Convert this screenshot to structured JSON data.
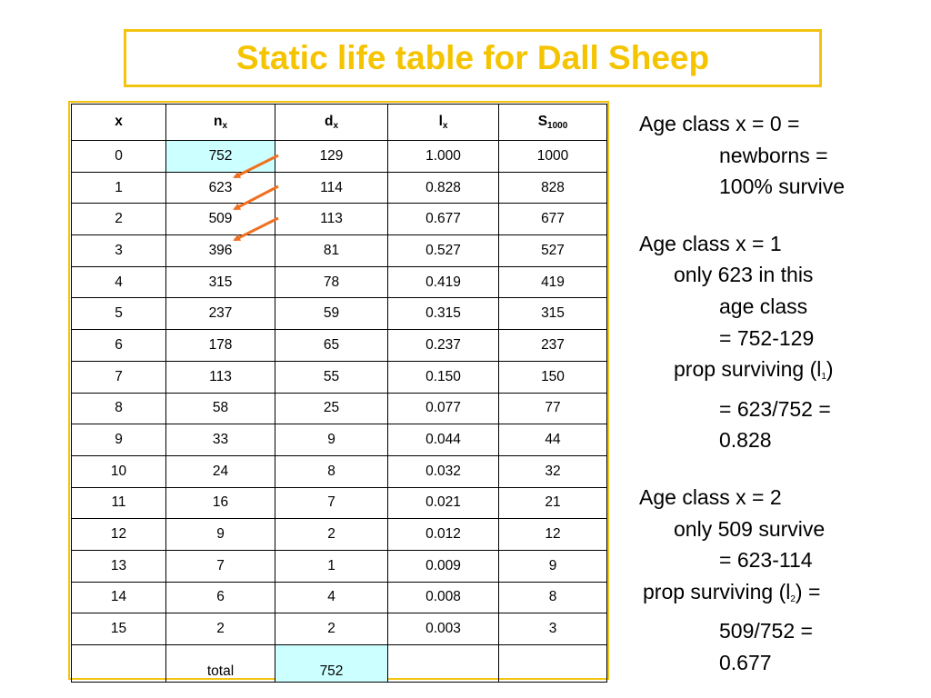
{
  "title": "Static life table for Dall Sheep",
  "table": {
    "headers": [
      {
        "base": "x",
        "sub": ""
      },
      {
        "base": "n",
        "sub": "x"
      },
      {
        "base": "d",
        "sub": "x"
      },
      {
        "base": "l",
        "sub": "x"
      },
      {
        "base": "S",
        "sub": "1000"
      }
    ],
    "rows": [
      [
        "0",
        "752",
        "129",
        "1.000",
        "1000"
      ],
      [
        "1",
        "623",
        "114",
        "0.828",
        "828"
      ],
      [
        "2",
        "509",
        "113",
        "0.677",
        "677"
      ],
      [
        "3",
        "396",
        "81",
        "0.527",
        "527"
      ],
      [
        "4",
        "315",
        "78",
        "0.419",
        "419"
      ],
      [
        "5",
        "237",
        "59",
        "0.315",
        "315"
      ],
      [
        "6",
        "178",
        "65",
        "0.237",
        "237"
      ],
      [
        "7",
        "113",
        "55",
        "0.150",
        "150"
      ],
      [
        "8",
        "58",
        "25",
        "0.077",
        "77"
      ],
      [
        "9",
        "33",
        "9",
        "0.044",
        "44"
      ],
      [
        "10",
        "24",
        "8",
        "0.032",
        "32"
      ],
      [
        "11",
        "16",
        "7",
        "0.021",
        "21"
      ],
      [
        "12",
        "9",
        "2",
        "0.012",
        "12"
      ],
      [
        "13",
        "7",
        "1",
        "0.009",
        "9"
      ],
      [
        "14",
        "6",
        "4",
        "0.008",
        "8"
      ],
      [
        "15",
        "2",
        "2",
        "0.003",
        "3"
      ]
    ],
    "total_row": [
      "",
      "total",
      "752",
      "",
      ""
    ]
  },
  "notes": {
    "block1": {
      "line1": "Age class x = 0 =",
      "line2": "newborns =",
      "line3": "100% survive"
    },
    "block2": {
      "line1": "Age class x = 1",
      "line2": "only 623 in this",
      "line3": "age class",
      "line4": "= 752-129",
      "line5_pre": "prop surviving (l",
      "line5_sub": "1",
      "line5_post": ")",
      "line6": "= 623/752 =",
      "line7": "0.828"
    },
    "block3": {
      "line1": "Age class x = 2",
      "line2": "only 509 survive",
      "line3": "= 623-114",
      "line4_pre": "prop surviving (l",
      "line4_sub": "2",
      "line4_post": ") =",
      "line5": "509/752 =",
      "line6": "0.677"
    }
  },
  "colors": {
    "title": "#f5c400",
    "frame_border": "#f2c40f",
    "highlight_cell": "#ccffff",
    "arrow": "#f07020"
  }
}
